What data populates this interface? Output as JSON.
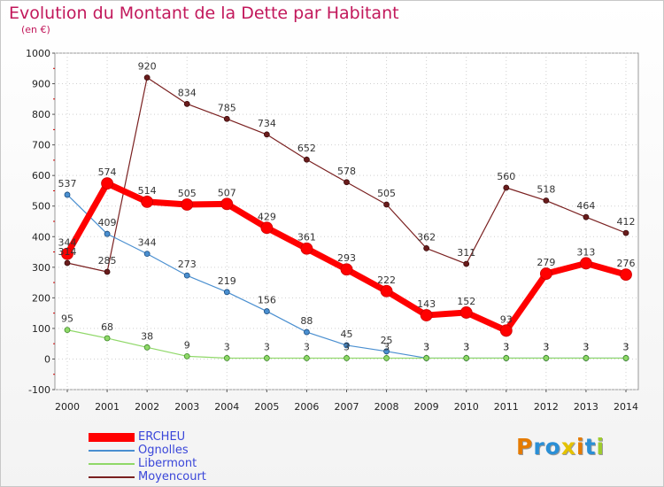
{
  "title": "Evolution du Montant de la Dette par Habitant",
  "subtitle": "(en €)",
  "logo": {
    "text": "Proxiti",
    "colors": [
      "#e57b00",
      "#2a8fd6",
      "#2a8fd6",
      "#e4c200",
      "#e57b00",
      "#2a8fd6",
      "#9fcc2e"
    ]
  },
  "chart_data": {
    "type": "line",
    "x": [
      "2000",
      "2001",
      "2002",
      "2003",
      "2004",
      "2005",
      "2006",
      "2007",
      "2008",
      "2009",
      "2010",
      "2011",
      "2012",
      "2013",
      "2014"
    ],
    "ylim": [
      -100,
      1000
    ],
    "yticks": [
      "-100",
      "0",
      "100",
      "200",
      "300",
      "400",
      "500",
      "600",
      "700",
      "800",
      "900",
      "1000"
    ],
    "legend_position": "bottom-left",
    "series": [
      {
        "name": "ERCHEU",
        "color": "#ff0000",
        "values": [
          344,
          574,
          514,
          505,
          507,
          429,
          361,
          293,
          222,
          143,
          152,
          93,
          279,
          313,
          276
        ],
        "labels": [
          "344",
          "574",
          "514",
          "505",
          "507",
          "429",
          "361",
          "293",
          "222",
          "143",
          "152",
          "93",
          "279",
          "313",
          "276"
        ]
      },
      {
        "name": "Ognolles",
        "color": "#4a8fd0",
        "values": [
          537,
          409,
          344,
          273,
          219,
          156,
          88,
          45,
          25,
          3,
          3,
          3,
          3,
          3,
          3
        ],
        "labels": [
          "537",
          "409",
          "344",
          "273",
          "219",
          "156",
          "88",
          "45",
          "25",
          "3",
          "3",
          "3",
          "3",
          "3",
          "3"
        ]
      },
      {
        "name": "Libermont",
        "color": "#8fd868",
        "values": [
          95,
          68,
          38,
          9,
          3,
          3,
          3,
          3,
          3,
          3,
          3,
          3,
          3,
          3,
          3
        ],
        "labels": [
          "95",
          "68",
          "38",
          "9",
          "3",
          "3",
          "3",
          "3",
          "3",
          "3",
          "3",
          "3",
          "3",
          "3",
          "3"
        ]
      },
      {
        "name": "Moyencourt",
        "color": "#7a2020",
        "values": [
          314,
          285,
          920,
          834,
          785,
          734,
          652,
          578,
          505,
          362,
          311,
          560,
          518,
          464,
          412
        ],
        "labels": [
          "314",
          "285",
          "920",
          "834",
          "785",
          "734",
          "652",
          "578",
          "505",
          "362",
          "311",
          "560",
          "518",
          "464",
          "412"
        ]
      }
    ]
  }
}
